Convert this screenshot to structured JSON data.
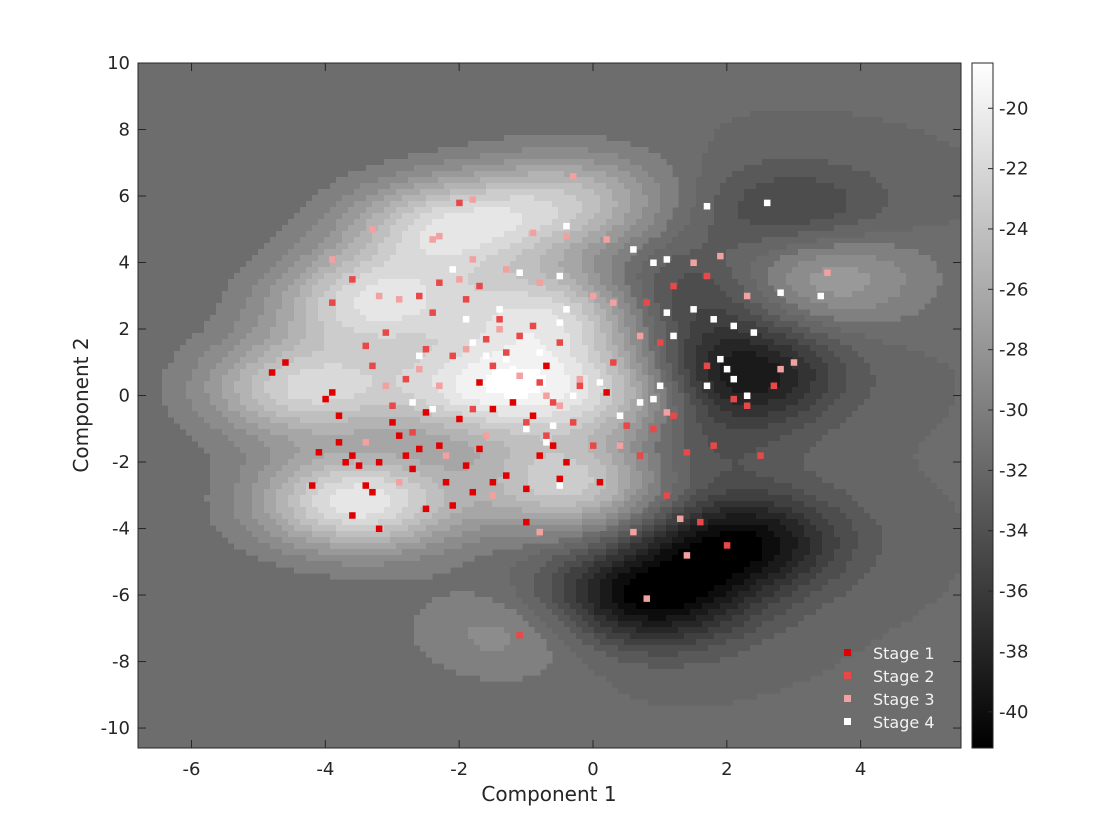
{
  "chart_data": {
    "type": "scatter",
    "subtype": "filled-contour-with-scatter-overlay",
    "title": "",
    "xlabel": "Component 1",
    "ylabel": "Component 2",
    "xlim": [
      -6.8,
      5.5
    ],
    "ylim": [
      -10.6,
      10
    ],
    "x_ticks": [
      -6,
      -4,
      -2,
      0,
      2,
      4
    ],
    "y_ticks": [
      -10,
      -8,
      -6,
      -4,
      -2,
      0,
      2,
      4,
      6,
      8,
      10
    ],
    "colorbar": {
      "colormap": "gray",
      "range": [
        -41.2,
        -18.5
      ],
      "ticks": [
        -40,
        -38,
        -36,
        -34,
        -32,
        -30,
        -28,
        -26,
        -24,
        -22,
        -20
      ]
    },
    "contour": {
      "background_level": -31.5,
      "peaks": [
        {
          "x": -3.5,
          "y": -3.2,
          "level": -20.5
        },
        {
          "x": -4.3,
          "y": 0.2,
          "level": -22.5
        },
        {
          "x": -3.3,
          "y": 2.8,
          "level": -22
        },
        {
          "x": -2.2,
          "y": 5.0,
          "level": -22.5
        },
        {
          "x": -1.6,
          "y": 0.2,
          "level": -21.5
        },
        {
          "x": -0.6,
          "y": 2.4,
          "level": -22
        },
        {
          "x": -0.3,
          "y": -2.6,
          "level": -22.5
        },
        {
          "x": -0.4,
          "y": 5.8,
          "level": -24.5
        },
        {
          "x": 0.4,
          "y": 0.0,
          "level": -23.5
        },
        {
          "x": 3.4,
          "y": 3.6,
          "level": -26.5
        },
        {
          "x": -1.2,
          "y": -7.1,
          "level": -28.5
        },
        {
          "x": 2.1,
          "y": 0.6,
          "level": -40.5
        },
        {
          "x": 2.2,
          "y": -4.4,
          "level": -40.5
        },
        {
          "x": 0.8,
          "y": -6.1,
          "level": -41
        },
        {
          "x": 1.2,
          "y": -1.5,
          "level": -35
        },
        {
          "x": 3.0,
          "y": 5.5,
          "level": -35.5
        },
        {
          "x": 1.4,
          "y": 3.0,
          "level": -36
        }
      ]
    },
    "legend": {
      "location": "bottom-right",
      "entries": [
        "Stage 1",
        "Stage 2",
        "Stage 3",
        "Stage 4"
      ]
    },
    "series": [
      {
        "name": "Stage 1",
        "color": "#e00000",
        "points": [
          [
            -4.8,
            0.7
          ],
          [
            -4.6,
            1.0
          ],
          [
            -4.1,
            -1.7
          ],
          [
            -4.0,
            -0.1
          ],
          [
            -3.9,
            0.1
          ],
          [
            -3.8,
            -0.6
          ],
          [
            -3.8,
            -1.4
          ],
          [
            -3.7,
            -2.0
          ],
          [
            -3.6,
            -1.8
          ],
          [
            -3.6,
            -3.6
          ],
          [
            -3.5,
            -2.1
          ],
          [
            -3.4,
            -2.7
          ],
          [
            -3.3,
            -2.9
          ],
          [
            -3.2,
            -2.0
          ],
          [
            -3.0,
            -0.8
          ],
          [
            -2.9,
            -1.2
          ],
          [
            -2.8,
            -1.8
          ],
          [
            -2.7,
            -2.2
          ],
          [
            -2.6,
            -1.6
          ],
          [
            -2.5,
            -3.4
          ],
          [
            -2.3,
            -1.5
          ],
          [
            -2.2,
            -2.6
          ],
          [
            -2.1,
            -3.3
          ],
          [
            -1.9,
            -2.1
          ],
          [
            -1.8,
            -2.9
          ],
          [
            -1.7,
            -1.6
          ],
          [
            -1.5,
            -2.6
          ],
          [
            -1.3,
            -2.4
          ],
          [
            -1.0,
            -2.8
          ],
          [
            -0.8,
            -1.8
          ],
          [
            -0.6,
            -1.5
          ],
          [
            -0.5,
            -2.5
          ],
          [
            -0.4,
            -2.0
          ],
          [
            -1.7,
            0.4
          ],
          [
            -1.2,
            -0.2
          ],
          [
            -0.9,
            -0.6
          ],
          [
            -0.7,
            0.9
          ],
          [
            0.1,
            -2.6
          ],
          [
            0.2,
            0.1
          ],
          [
            -2.5,
            -0.5
          ],
          [
            -3.2,
            -4.0
          ],
          [
            -2.0,
            -0.7
          ],
          [
            -1.5,
            -0.4
          ],
          [
            -4.2,
            -2.7
          ],
          [
            -1.0,
            -3.8
          ]
        ]
      },
      {
        "name": "Stage 2",
        "color": "#e84848",
        "points": [
          [
            -3.9,
            2.8
          ],
          [
            -3.4,
            1.5
          ],
          [
            -3.3,
            0.9
          ],
          [
            -3.1,
            1.9
          ],
          [
            -3.0,
            -0.3
          ],
          [
            -2.8,
            0.5
          ],
          [
            -2.7,
            -1.1
          ],
          [
            -2.5,
            1.4
          ],
          [
            -2.4,
            2.5
          ],
          [
            -2.3,
            3.4
          ],
          [
            -2.1,
            1.2
          ],
          [
            -2.0,
            5.8
          ],
          [
            -1.9,
            2.9
          ],
          [
            -1.8,
            -0.4
          ],
          [
            -1.7,
            3.3
          ],
          [
            -1.6,
            1.7
          ],
          [
            -1.5,
            0.9
          ],
          [
            -1.4,
            2.3
          ],
          [
            -1.3,
            1.3
          ],
          [
            -1.1,
            1.8
          ],
          [
            -1.0,
            -0.8
          ],
          [
            -0.9,
            2.1
          ],
          [
            -0.8,
            0.4
          ],
          [
            -0.7,
            -1.2
          ],
          [
            -0.6,
            -0.2
          ],
          [
            -0.5,
            1.6
          ],
          [
            -0.3,
            -0.8
          ],
          [
            -0.2,
            0.3
          ],
          [
            0.0,
            -1.5
          ],
          [
            0.3,
            1.0
          ],
          [
            0.5,
            -0.9
          ],
          [
            0.7,
            -1.8
          ],
          [
            0.9,
            -1.0
          ],
          [
            1.1,
            -3.0
          ],
          [
            1.2,
            -0.6
          ],
          [
            1.4,
            -1.7
          ],
          [
            1.6,
            -3.8
          ],
          [
            1.7,
            0.9
          ],
          [
            1.8,
            -1.5
          ],
          [
            2.0,
            -4.5
          ],
          [
            2.1,
            -0.1
          ],
          [
            2.3,
            -0.3
          ],
          [
            2.5,
            -1.8
          ],
          [
            2.7,
            0.3
          ],
          [
            0.8,
            2.8
          ],
          [
            1.0,
            1.6
          ],
          [
            1.2,
            3.3
          ],
          [
            1.7,
            3.6
          ],
          [
            -1.1,
            -7.2
          ],
          [
            -3.6,
            3.5
          ],
          [
            -2.6,
            3.0
          ]
        ]
      },
      {
        "name": "Stage 3",
        "color": "#f2a0a0",
        "points": [
          [
            -3.9,
            4.1
          ],
          [
            -3.3,
            5.0
          ],
          [
            -3.2,
            3.0
          ],
          [
            -3.1,
            0.3
          ],
          [
            -2.9,
            2.9
          ],
          [
            -2.6,
            0.8
          ],
          [
            -2.4,
            4.7
          ],
          [
            -2.3,
            0.3
          ],
          [
            -2.2,
            -1.8
          ],
          [
            -2.0,
            3.5
          ],
          [
            -1.9,
            1.4
          ],
          [
            -1.8,
            4.1
          ],
          [
            -1.6,
            -1.2
          ],
          [
            -1.4,
            2.0
          ],
          [
            -1.3,
            3.8
          ],
          [
            -1.1,
            0.6
          ],
          [
            -0.9,
            4.9
          ],
          [
            -0.8,
            3.4
          ],
          [
            -0.7,
            0.0
          ],
          [
            -0.5,
            -0.3
          ],
          [
            -0.4,
            4.8
          ],
          [
            -0.3,
            6.6
          ],
          [
            -0.2,
            0.5
          ],
          [
            0.0,
            3.0
          ],
          [
            0.2,
            4.7
          ],
          [
            0.3,
            2.8
          ],
          [
            0.4,
            -1.5
          ],
          [
            0.6,
            -4.1
          ],
          [
            0.8,
            -6.1
          ],
          [
            1.1,
            -0.5
          ],
          [
            1.3,
            -3.7
          ],
          [
            1.4,
            -4.8
          ],
          [
            1.5,
            4.0
          ],
          [
            1.9,
            4.2
          ],
          [
            2.3,
            3.0
          ],
          [
            2.8,
            0.8
          ],
          [
            3.0,
            1.0
          ],
          [
            3.5,
            3.7
          ],
          [
            -1.5,
            -3.0
          ],
          [
            -0.8,
            -4.1
          ],
          [
            -3.4,
            -1.4
          ],
          [
            -2.9,
            -2.6
          ],
          [
            -1.8,
            5.9
          ],
          [
            -2.3,
            4.8
          ],
          [
            0.7,
            1.8
          ]
        ]
      },
      {
        "name": "Stage 4",
        "color": "#ffffff",
        "points": [
          [
            -2.6,
            1.2
          ],
          [
            -2.4,
            -0.4
          ],
          [
            -2.7,
            -0.2
          ],
          [
            -2.1,
            3.8
          ],
          [
            -1.9,
            2.3
          ],
          [
            -1.8,
            1.6
          ],
          [
            -1.6,
            1.2
          ],
          [
            -1.4,
            2.6
          ],
          [
            -1.3,
            1.1
          ],
          [
            -1.2,
            0.8
          ],
          [
            -1.1,
            3.7
          ],
          [
            -0.8,
            1.3
          ],
          [
            -0.5,
            3.6
          ],
          [
            -0.4,
            5.1
          ],
          [
            -0.4,
            2.6
          ],
          [
            -0.5,
            2.2
          ],
          [
            -0.7,
            -1.4
          ],
          [
            -0.3,
            0.0
          ],
          [
            0.1,
            0.4
          ],
          [
            0.4,
            -0.6
          ],
          [
            0.6,
            4.4
          ],
          [
            0.9,
            4.0
          ],
          [
            1.0,
            0.3
          ],
          [
            1.1,
            4.1
          ],
          [
            1.1,
            2.5
          ],
          [
            1.2,
            1.8
          ],
          [
            1.5,
            2.6
          ],
          [
            1.7,
            5.7
          ],
          [
            1.8,
            2.3
          ],
          [
            1.9,
            1.1
          ],
          [
            2.0,
            0.8
          ],
          [
            2.1,
            2.1
          ],
          [
            2.1,
            0.5
          ],
          [
            2.3,
            0.0
          ],
          [
            2.4,
            1.9
          ],
          [
            2.8,
            3.1
          ],
          [
            2.6,
            5.8
          ],
          [
            3.4,
            3.0
          ],
          [
            0.7,
            -0.2
          ],
          [
            -0.5,
            -2.7
          ],
          [
            -1.4,
            0.7
          ],
          [
            -0.6,
            -0.9
          ],
          [
            0.9,
            -0.1
          ],
          [
            1.7,
            0.3
          ],
          [
            -1.0,
            -1.0
          ]
        ]
      }
    ]
  }
}
